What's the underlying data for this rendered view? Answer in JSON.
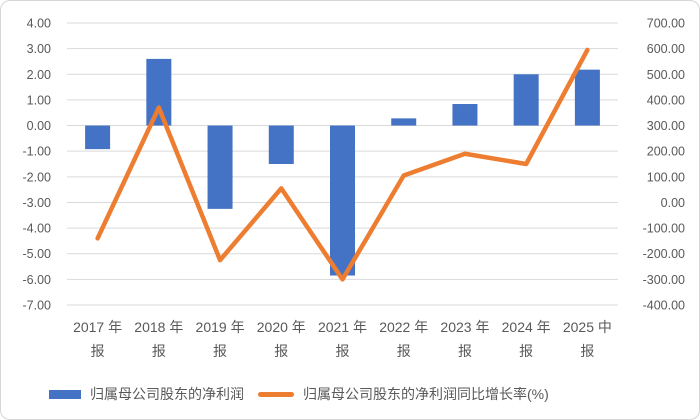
{
  "chart_data": {
    "type": "bar",
    "combo": "bar+line, dual axis",
    "categories_two_line": [
      [
        "2017 年",
        "报"
      ],
      [
        "2018 年",
        "报"
      ],
      [
        "2019 年",
        "报"
      ],
      [
        "2020 年",
        "报"
      ],
      [
        "2021 年",
        "报"
      ],
      [
        "2022 年",
        "报"
      ],
      [
        "2023 年",
        "报"
      ],
      [
        "2024 年",
        "报"
      ],
      [
        "2025 中",
        "报"
      ]
    ],
    "categories": [
      "2017 年报",
      "2018 年报",
      "2019 年报",
      "2020 年报",
      "2021 年报",
      "2022 年报",
      "2023 年报",
      "2024 年报",
      "2025 中报"
    ],
    "series": [
      {
        "name": "归属母公司股东的净利润",
        "type": "bar",
        "axis": "left",
        "color": "#4472C4",
        "values": [
          -0.92,
          2.6,
          -3.25,
          -1.5,
          -5.85,
          0.28,
          0.84,
          2.0,
          2.18
        ]
      },
      {
        "name": "归属母公司股东的净利润同比增长率(%)",
        "type": "line",
        "axis": "right",
        "color": "#ED7D31",
        "values": [
          -140,
          370,
          -225,
          55,
          -300,
          105,
          190,
          150,
          595
        ]
      }
    ],
    "left_axis": {
      "max": 4,
      "min": -7,
      "step": 1,
      "tick_labels": [
        "4.00",
        "3.00",
        "2.00",
        "1.00",
        "0.00",
        "-1.00",
        "-2.00",
        "-3.00",
        "-4.00",
        "-5.00",
        "-6.00",
        "-7.00"
      ]
    },
    "right_axis": {
      "max": 700,
      "min": -400,
      "step": 100,
      "tick_labels": [
        "700.00",
        "600.00",
        "500.00",
        "400.00",
        "300.00",
        "200.00",
        "100.00",
        "0.00",
        "-100.00",
        "-200.00",
        "-300.00",
        "-400.00"
      ]
    },
    "grid": true,
    "grid_color": "#D9D9D9",
    "text_color": "#595959",
    "legend_position": "bottom"
  }
}
